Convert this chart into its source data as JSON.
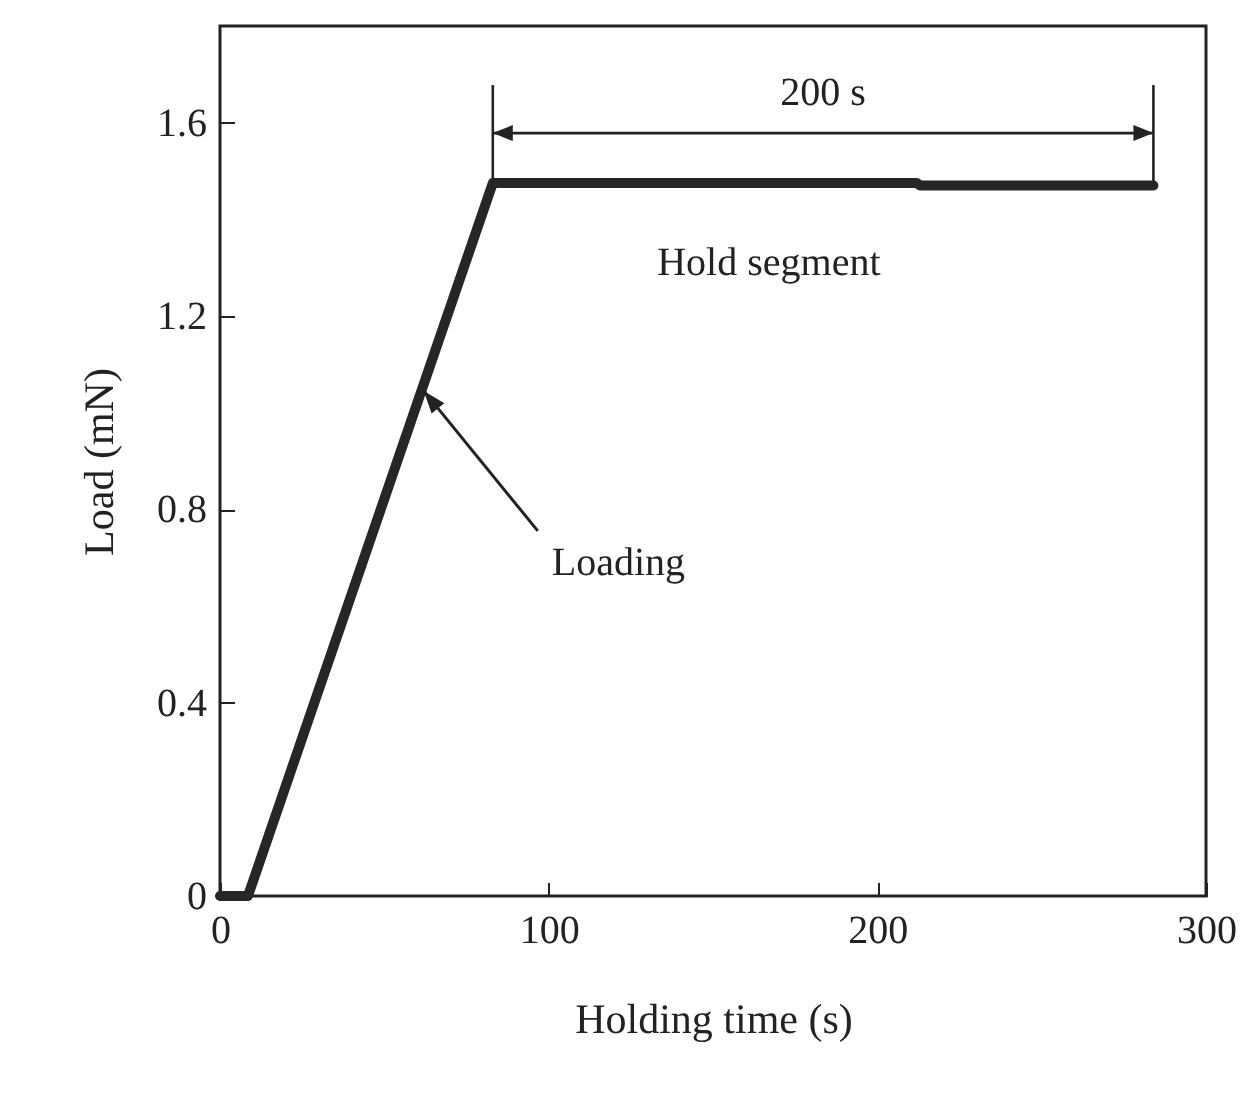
{
  "chart_data": {
    "type": "line",
    "xlabel": "Holding time (s)",
    "ylabel": "Load (mN)",
    "xlim": [
      0,
      300
    ],
    "xticks": [
      0,
      100,
      200,
      300
    ],
    "ylim": [
      0,
      1.8
    ],
    "yticks": [
      0,
      0.4,
      0.8,
      1.2,
      1.6
    ],
    "grid": false,
    "line_style": "solid",
    "series": [
      {
        "color": "#262626",
        "x": [
          0,
          8.5,
          83,
          212,
          213,
          284
        ],
        "values": [
          0,
          0,
          1.475,
          1.475,
          1.47,
          1.47
        ]
      }
    ],
    "annotations": [
      "200 s",
      {
        "text": "Hold segment",
        "x": 167,
        "y": 1.475
      },
      {
        "text": "Loading",
        "x": 62,
        "y": 1.045
      }
    ]
  }
}
